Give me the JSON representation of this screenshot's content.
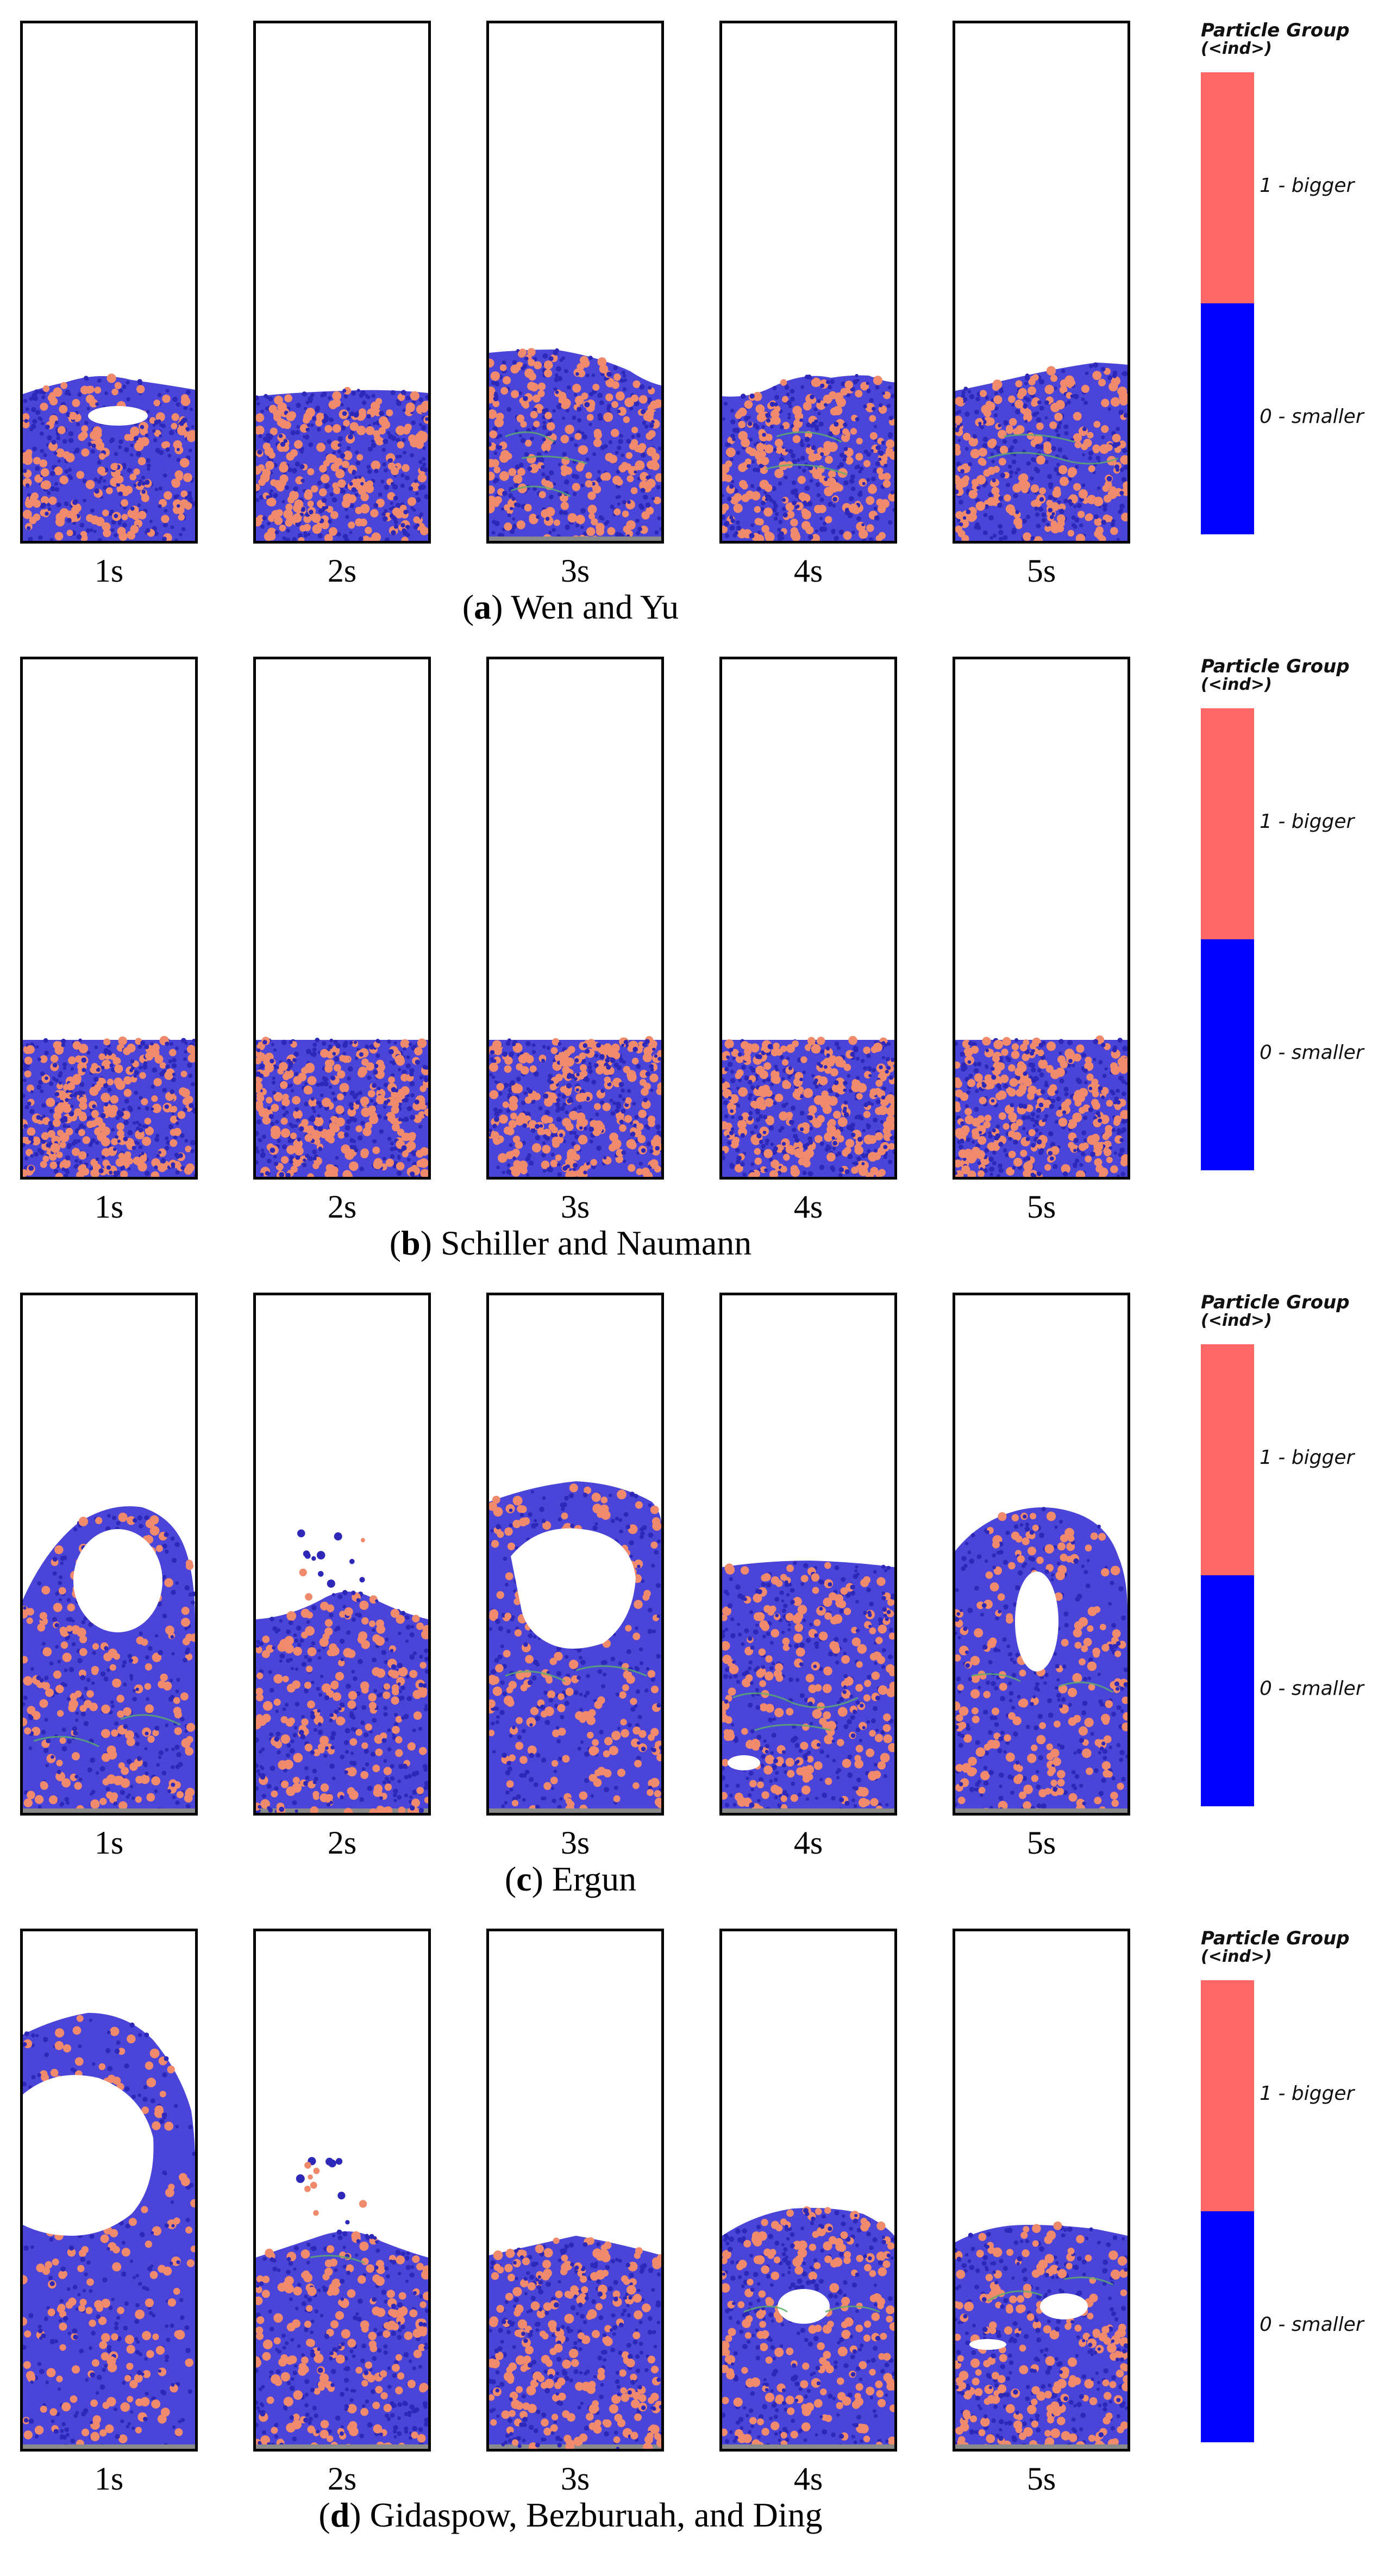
{
  "legend": {
    "title": "Particle Group",
    "subtitle": "(<ind>)",
    "label_bigger": "1 - bigger",
    "label_smaller": "0 - smaller",
    "color_bigger": "#FF6666",
    "color_smaller": "#0000FF"
  },
  "colors": {
    "particle_small": "#4a45d8",
    "particle_small_dark": "#2d28b8",
    "particle_big": "#f08a6c",
    "void": "#ffffff",
    "streak": "#5cae6a",
    "floor": "#8a8a8a"
  },
  "time_labels": [
    "1s",
    "2s",
    "3s",
    "4s",
    "5s"
  ],
  "panels": [
    {
      "letter": "a",
      "title": "Wen and Yu"
    },
    {
      "letter": "b",
      "title": "Schiller and Naumann"
    },
    {
      "letter": "c",
      "title": "Ergun"
    },
    {
      "letter": "d",
      "title": "Gidaspow, Bezburuah, and Ding"
    }
  ]
}
